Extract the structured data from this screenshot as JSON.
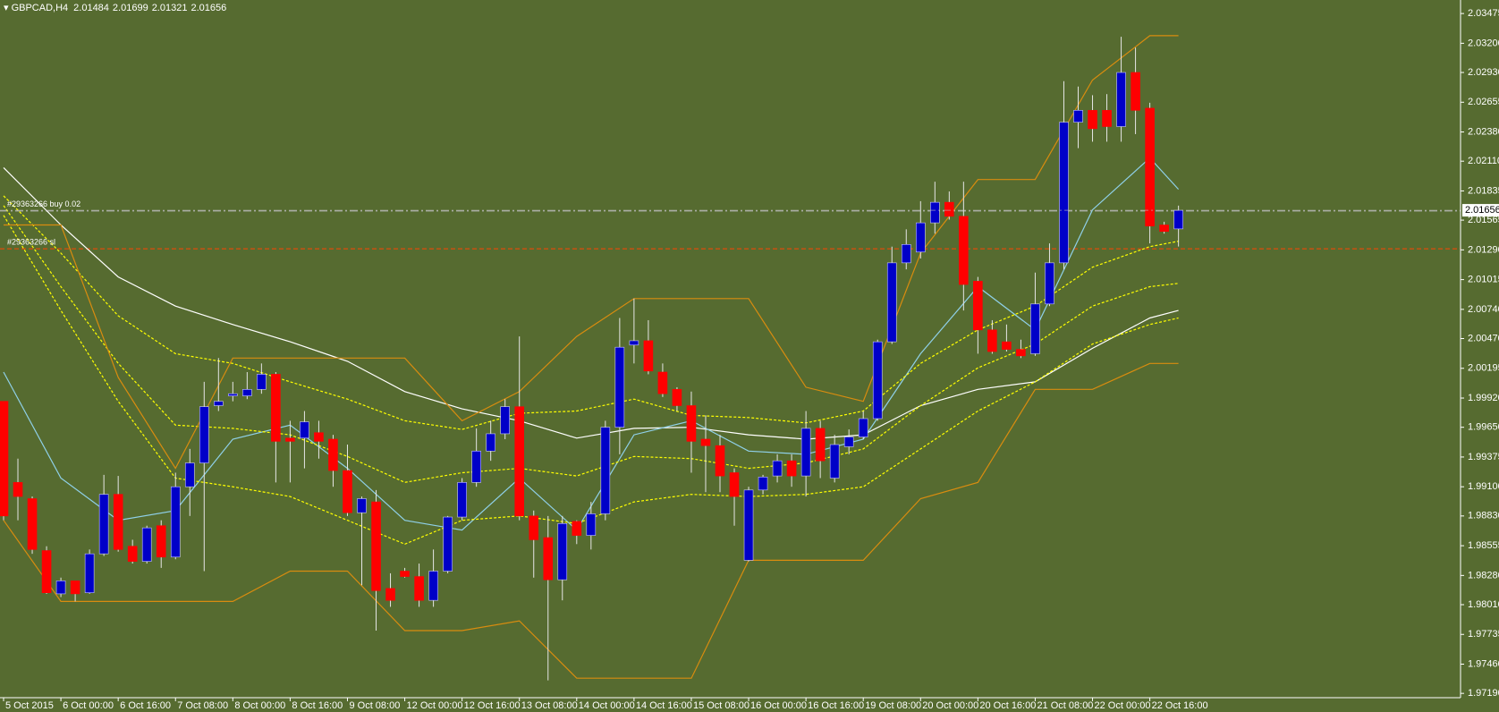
{
  "chart_data": {
    "type": "candlestick",
    "symbol": "GBPCAD,H4",
    "background": "#566b30",
    "up_color": "#0000c8",
    "down_color": "#ff0000",
    "wick_color": "#e6e6e6",
    "ylim": [
      1.9715,
      2.036
    ],
    "yticks": [
      2.03475,
      {
        "value": 2.032,
        "label": "2.03200"
      },
      {
        "value": 2.0293,
        "label": "2.02930"
      },
      2.02655,
      {
        "value": 2.0238,
        "label": "2.02380"
      },
      {
        "value": 2.0211,
        "label": "2.02110"
      },
      2.01835,
      2.01565,
      {
        "value": 2.0129,
        "label": "2.01290"
      },
      2.01015,
      {
        "value": 2.0074,
        "label": "2.00740"
      },
      {
        "value": 2.0047,
        "label": "2.00470"
      },
      2.00195,
      {
        "value": 1.9992,
        "label": "1.99920"
      },
      {
        "value": 1.9965,
        "label": "1.99650"
      },
      1.99375,
      {
        "value": 1.991,
        "label": "1.99100"
      },
      {
        "value": 1.9883,
        "label": "1.98830"
      },
      1.98555,
      {
        "value": 1.9828,
        "label": "1.98280"
      },
      {
        "value": 1.9801,
        "label": "1.98010"
      },
      1.97735,
      {
        "value": 1.9746,
        "label": "1.97460"
      },
      {
        "value": 1.9719,
        "label": "1.97190"
      }
    ],
    "categories": [
      "5 Oct 2015",
      null,
      null,
      null,
      "6 Oct 00:00",
      null,
      null,
      null,
      "6 Oct 16:00",
      null,
      null,
      null,
      "7 Oct 08:00",
      null,
      null,
      null,
      "8 Oct 00:00",
      null,
      null,
      null,
      "8 Oct 16:00",
      null,
      null,
      null,
      "9 Oct 08:00",
      null,
      null,
      null,
      "12 Oct 00:00",
      null,
      null,
      null,
      "12 Oct 16:00",
      null,
      null,
      null,
      "13 Oct 08:00",
      null,
      null,
      null,
      "14 Oct 00:00",
      null,
      null,
      null,
      "14 Oct 16:00",
      null,
      null,
      null,
      "15 Oct 08:00",
      null,
      null,
      null,
      "16 Oct 00:00",
      null,
      null,
      null,
      "16 Oct 16:00",
      null,
      null,
      null,
      "19 Oct 08:00",
      null,
      null,
      null,
      "20 Oct 00:00",
      null,
      null,
      null,
      "20 Oct 16:00",
      null,
      null,
      null,
      "21 Oct 08:00",
      null,
      null,
      null,
      "22 Oct 00:00",
      null,
      null,
      null,
      "22 Oct 16:00",
      null,
      null
    ],
    "ohlc": [
      [
        1.9989,
        1.9989,
        1.9879,
        1.9883
      ],
      [
        1.9914,
        1.9936,
        1.9879,
        1.9901
      ],
      [
        1.9899,
        1.9901,
        1.9848,
        1.9852
      ],
      [
        1.9851,
        1.9855,
        1.9811,
        1.9812
      ],
      [
        1.9811,
        1.9826,
        1.9808,
        1.9823
      ],
      [
        1.9823,
        1.9823,
        1.9804,
        1.9811
      ],
      [
        1.9812,
        1.9852,
        1.9811,
        1.9848
      ],
      [
        1.9848,
        1.9921,
        1.9846,
        1.9903
      ],
      [
        1.9903,
        1.992,
        1.985,
        1.9852
      ],
      [
        1.9855,
        1.9861,
        1.9839,
        1.9841
      ],
      [
        1.9841,
        1.9874,
        1.9839,
        1.9872
      ],
      [
        1.9874,
        1.9879,
        1.9835,
        1.9845
      ],
      [
        1.9845,
        1.9923,
        1.9843,
        1.991
      ],
      [
        1.991,
        1.9945,
        1.9883,
        1.9932
      ],
      [
        1.9932,
        2.0007,
        1.9832,
        1.9984
      ],
      [
        1.9985,
        2.0029,
        1.998,
        1.9989
      ],
      [
        1.9994,
        2.0007,
        1.9989,
        1.9996
      ],
      [
        1.9994,
        2.0016,
        1.9991,
        2.0
      ],
      [
        2.0,
        2.0024,
        1.9996,
        2.0014
      ],
      [
        2.0014,
        2.0016,
        1.9914,
        1.9952
      ],
      [
        1.9955,
        1.9971,
        1.9914,
        1.9952
      ],
      [
        1.9955,
        1.998,
        1.9927,
        1.997
      ],
      [
        1.996,
        1.9971,
        1.9936,
        1.9952
      ],
      [
        1.9954,
        1.9958,
        1.991,
        1.9925
      ],
      [
        1.9925,
        1.9949,
        1.9883,
        1.9886
      ],
      [
        1.9886,
        1.9901,
        1.9819,
        1.9899
      ],
      [
        1.9896,
        1.9907,
        1.9777,
        1.9814
      ],
      [
        1.9816,
        1.983,
        1.9799,
        1.9805
      ],
      [
        1.9832,
        1.9835,
        1.9826,
        1.9827
      ],
      [
        1.9827,
        1.9839,
        1.9799,
        1.9805
      ],
      [
        1.9805,
        1.9852,
        1.9799,
        1.9832
      ],
      [
        1.9832,
        1.9883,
        1.983,
        1.9882
      ],
      [
        1.9882,
        1.9918,
        1.9879,
        1.9914
      ],
      [
        1.9914,
        1.9964,
        1.991,
        1.9943
      ],
      [
        1.9943,
        1.9971,
        1.9934,
        1.9959
      ],
      [
        1.9959,
        1.9991,
        1.9954,
        1.9984
      ],
      [
        1.9984,
        2.0049,
        1.9879,
        1.9883
      ],
      [
        1.9883,
        1.9888,
        1.9826,
        1.9861
      ],
      [
        1.9863,
        1.9883,
        1.9731,
        1.9824
      ],
      [
        1.9824,
        1.9883,
        1.9805,
        1.9876
      ],
      [
        1.9878,
        1.9879,
        1.9857,
        1.9865
      ],
      [
        1.9865,
        1.9896,
        1.9852,
        1.9885
      ],
      [
        1.9885,
        1.9971,
        1.9879,
        1.9965
      ],
      [
        1.9965,
        2.0066,
        1.994,
        2.0039
      ],
      [
        2.0041,
        2.0084,
        2.0024,
        2.0045
      ],
      [
        2.0045,
        2.0064,
        2.0014,
        2.0017
      ],
      [
        2.0016,
        2.0024,
        1.9993,
        1.9996
      ],
      [
        2.0,
        2.0002,
        1.998,
        1.9985
      ],
      [
        1.9985,
        1.9998,
        1.9923,
        1.9952
      ],
      [
        1.9954,
        1.9976,
        1.9905,
        1.9948
      ],
      [
        1.9948,
        1.9958,
        1.9905,
        1.992
      ],
      [
        1.9923,
        1.9927,
        1.9874,
        1.9901
      ],
      [
        1.9842,
        1.991,
        1.9841,
        1.9907
      ],
      [
        1.9907,
        1.9921,
        1.9903,
        1.9919
      ],
      [
        1.992,
        1.994,
        1.9914,
        1.9934
      ],
      [
        1.9934,
        1.994,
        1.991,
        1.992
      ],
      [
        1.992,
        1.998,
        1.9901,
        1.9964
      ],
      [
        1.9964,
        1.9971,
        1.9918,
        1.9934
      ],
      [
        1.9918,
        1.9958,
        1.9914,
        1.9949
      ],
      [
        1.9947,
        1.9963,
        1.994,
        1.9956
      ],
      [
        1.9956,
        1.998,
        1.9954,
        1.9973
      ],
      [
        1.9973,
        2.0046,
        1.9971,
        2.0044
      ],
      [
        2.0044,
        2.0132,
        2.0042,
        2.0117
      ],
      [
        2.0117,
        2.0148,
        2.0111,
        2.0134
      ],
      [
        2.0127,
        2.0174,
        2.0121,
        2.0154
      ],
      [
        2.0154,
        2.0192,
        2.0144,
        2.0173
      ],
      [
        2.0173,
        2.0183,
        2.0157,
        2.016
      ],
      [
        2.016,
        2.0192,
        2.0073,
        2.0097
      ],
      [
        2.01,
        2.0104,
        2.0033,
        2.0055
      ],
      [
        2.0055,
        2.0064,
        2.0033,
        2.0035
      ],
      [
        2.0044,
        2.006,
        2.0035,
        2.0037
      ],
      [
        2.0037,
        2.0046,
        2.0029,
        2.0031
      ],
      [
        2.0033,
        2.0108,
        2.0031,
        2.0079
      ],
      [
        2.0079,
        2.0135,
        2.0077,
        2.0117
      ],
      [
        2.0117,
        2.0285,
        2.0111,
        2.0247
      ],
      [
        2.0247,
        2.028,
        2.0223,
        2.0258
      ],
      [
        2.0258,
        2.0272,
        2.0229,
        2.0241
      ],
      [
        2.0258,
        2.0273,
        2.0229,
        2.0243
      ],
      [
        2.0243,
        2.0326,
        2.0229,
        2.0293
      ],
      [
        2.0293,
        2.0316,
        2.0236,
        2.0258
      ],
      [
        2.026,
        2.0265,
        2.0135,
        2.0151
      ],
      [
        2.0152,
        2.0155,
        2.0144,
        2.0146
      ],
      [
        2.01484,
        2.01699,
        2.01321,
        2.01656
      ]
    ],
    "bid": 2.01656,
    "orders": [
      {
        "label": "#29363266 buy 0.02",
        "price": 2.0165,
        "color": "#b4b4b4",
        "dash": "9 3 2 3"
      },
      {
        "label": "#29363266 sl",
        "price": 2.013,
        "color": "#ff4500",
        "dash": "5 3"
      }
    ],
    "overlay_x": [
      0,
      4,
      8,
      12,
      16,
      20,
      24,
      28,
      32,
      36,
      40,
      44,
      48,
      52,
      56,
      60,
      64,
      68,
      72,
      76,
      80,
      82
    ],
    "overlays": [
      {
        "color": "#ffffff",
        "values": [
          2.0205,
          2.0152,
          2.0104,
          2.0077,
          2.006,
          2.0044,
          2.0026,
          1.9998,
          1.9982,
          1.9971,
          1.9955,
          1.9964,
          1.9965,
          1.9958,
          1.9954,
          1.9958,
          1.9985,
          2.0,
          2.0007,
          2.0038,
          2.0066,
          2.0073
        ]
      },
      {
        "color": "#8fd0e8",
        "values": [
          2.0016,
          1.9918,
          1.9879,
          1.9888,
          1.9954,
          1.9967,
          1.9927,
          1.9879,
          1.987,
          1.9918,
          1.987,
          1.9958,
          1.9971,
          1.9943,
          1.994,
          1.9954,
          2.0033,
          2.0095,
          2.0055,
          2.0166,
          2.0214,
          2.0185
        ]
      },
      {
        "color": "#ffff00",
        "dash": "3 2",
        "values": [
          2.0179,
          2.0126,
          2.0068,
          2.0033,
          2.0024,
          2.0007,
          1.9991,
          1.9971,
          1.9963,
          1.9978,
          1.998,
          1.9991,
          1.9976,
          1.9974,
          1.9969,
          1.998,
          2.0024,
          2.0055,
          2.0077,
          2.0113,
          2.0132,
          2.0137
        ]
      },
      {
        "color": "#ffff00",
        "dash": "3 2",
        "values": [
          2.017,
          2.0095,
          2.0024,
          1.9967,
          1.9964,
          1.9958,
          1.9938,
          1.9914,
          1.9923,
          1.9927,
          1.992,
          1.9938,
          1.9936,
          1.9927,
          1.9932,
          1.9945,
          1.9985,
          2.002,
          2.0042,
          2.0077,
          2.0095,
          2.0098
        ]
      },
      {
        "color": "#ffff00",
        "dash": "3 2",
        "values": [
          2.0161,
          2.0073,
          1.9989,
          1.9918,
          1.991,
          1.9901,
          1.9879,
          1.9857,
          1.9879,
          1.9883,
          1.9876,
          1.9896,
          1.9903,
          1.9901,
          1.9903,
          1.991,
          1.9945,
          1.998,
          2.0007,
          2.0042,
          2.006,
          2.0066
        ]
      },
      {
        "color": "#d98c0f",
        "values": [
          2.0152,
          2.0152,
          2.0011,
          1.9927,
          2.0029,
          2.0029,
          2.0029,
          2.0029,
          1.9971,
          1.9998,
          2.0049,
          2.0084,
          2.0084,
          2.0084,
          2.0002,
          1.9989,
          2.0126,
          2.0194,
          2.0194,
          2.0286,
          2.0327,
          2.0327
        ]
      },
      {
        "color": "#d98c0f",
        "values": [
          1.9879,
          1.9804,
          1.9804,
          1.9804,
          1.9804,
          1.9832,
          1.9832,
          1.9777,
          1.9777,
          1.9786,
          1.9733,
          1.9733,
          1.9733,
          1.9842,
          1.9842,
          1.9842,
          1.9899,
          1.9914,
          2.0,
          2.0,
          2.0024,
          2.0024
        ]
      }
    ]
  }
}
